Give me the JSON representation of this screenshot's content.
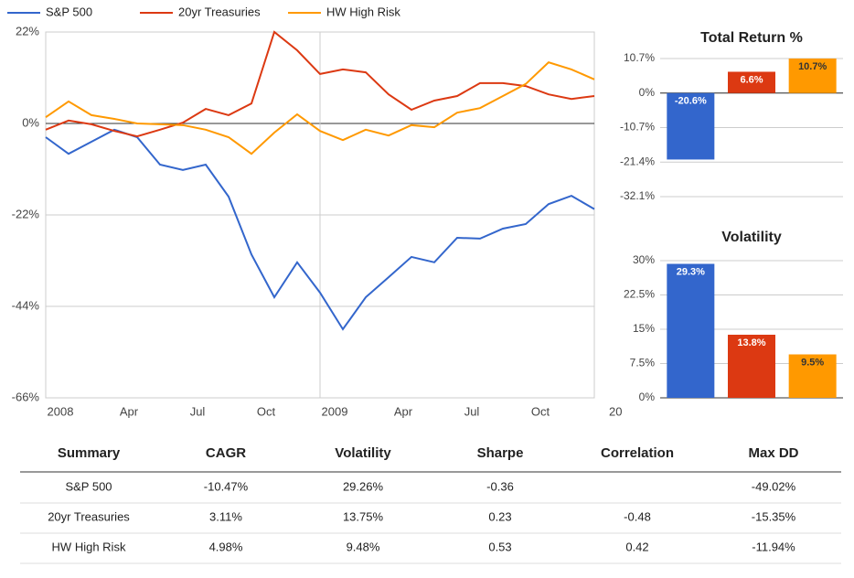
{
  "chart_data": [
    {
      "type": "line",
      "categories": [
        "2008",
        null,
        null,
        "Apr",
        null,
        null,
        "Jul",
        null,
        null,
        "Oct",
        null,
        null,
        "2009",
        null,
        null,
        "Apr",
        null,
        null,
        "Jul",
        null,
        null,
        "Oct",
        null,
        null,
        "20"
      ],
      "series": [
        {
          "name": "S&P 500",
          "color": "#3366cc",
          "values": [
            -3.3,
            -7.3,
            -4.4,
            -1.5,
            -3.3,
            -9.9,
            -11.2,
            -9.9,
            -17.6,
            -31.5,
            -41.8,
            -33.4,
            -40.7,
            -49.5,
            -41.8,
            -37,
            -32.1,
            -33.4,
            -27.5,
            -27.7,
            -25.3,
            -24.2,
            -19.4,
            -17.4,
            -20.6
          ]
        },
        {
          "name": "20yr Treasuries",
          "color": "#dc3912",
          "values": [
            -1.5,
            0.7,
            -0.2,
            -1.8,
            -3.1,
            -1.5,
            0.2,
            3.5,
            2.0,
            4.8,
            22,
            17.6,
            11.9,
            13,
            12.3,
            7,
            3.3,
            5.5,
            6.6,
            9.7,
            9.7,
            9,
            7,
            5.9,
            6.6
          ]
        },
        {
          "name": "HW High Risk",
          "color": "#ff9900",
          "values": [
            1.5,
            5.3,
            2,
            1.1,
            0,
            -0.2,
            -0.4,
            -1.5,
            -3.3,
            -7.3,
            -2.2,
            2.2,
            -1.8,
            -4,
            -1.5,
            -2.9,
            -0.4,
            -0.9,
            2.6,
            3.7,
            6.6,
            9.5,
            14.7,
            13,
            10.6
          ]
        }
      ],
      "ylim": [
        -66,
        22
      ],
      "yticks": [
        {
          "value": 22,
          "label": "22%"
        },
        {
          "value": 0,
          "label": "0%"
        },
        {
          "value": -22,
          "label": "-22%"
        },
        {
          "value": -44,
          "label": "-44%"
        },
        {
          "value": -66,
          "label": "-66%"
        }
      ],
      "grid": true,
      "legend": "top"
    },
    {
      "type": "bar",
      "title": "Total Return %",
      "categories": [
        null,
        null,
        null
      ],
      "values": [
        -20.6,
        6.6,
        10.7
      ],
      "value_labels": [
        "-20.6%",
        "6.6%",
        "10.7%"
      ],
      "colors": [
        "#3366cc",
        "#dc3912",
        "#ff9900"
      ],
      "ylim": [
        -32.1,
        10.7
      ],
      "yticks": [
        {
          "value": 10.7,
          "label": "10.7%"
        },
        {
          "value": 0,
          "label": "0%"
        },
        {
          "value": -10.7,
          "label": "-10.7%"
        },
        {
          "value": -21.4,
          "label": "-21.4%"
        },
        {
          "value": -32.1,
          "label": "-32.1%"
        }
      ],
      "grid": true
    },
    {
      "type": "bar",
      "title": "Volatility",
      "categories": [
        null,
        null,
        null
      ],
      "values": [
        29.3,
        13.8,
        9.5
      ],
      "value_labels": [
        "29.3%",
        "13.8%",
        "9.5%"
      ],
      "colors": [
        "#3366cc",
        "#dc3912",
        "#ff9900"
      ],
      "ylim": [
        0,
        30
      ],
      "yticks": [
        {
          "value": 30,
          "label": "30%"
        },
        {
          "value": 22.5,
          "label": "22.5%"
        },
        {
          "value": 15,
          "label": "15%"
        },
        {
          "value": 7.5,
          "label": "7.5%"
        },
        {
          "value": 0,
          "label": "0%"
        }
      ],
      "grid": true
    }
  ],
  "table": {
    "header": [
      "Summary",
      "CAGR",
      "Volatility",
      "Sharpe",
      "Correlation",
      "Max DD"
    ],
    "rows": [
      [
        "S&P 500",
        "-10.47%",
        "29.26%",
        "-0.36",
        null,
        "-49.02%"
      ],
      [
        "20yr Treasuries",
        "3.11%",
        "13.75%",
        "0.23",
        "-0.48",
        "-15.35%"
      ],
      [
        "HW High Risk",
        "4.98%",
        "9.48%",
        "0.53",
        "0.42",
        "-11.94%"
      ]
    ]
  }
}
